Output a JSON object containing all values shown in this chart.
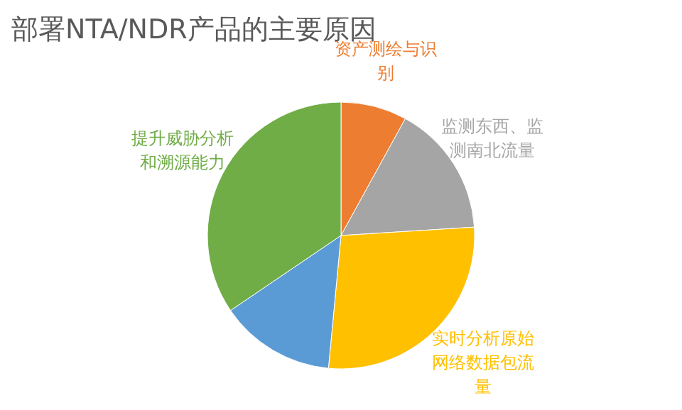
{
  "chart_data": {
    "type": "pie",
    "title": "部署NTA/NDR产品的主要原因",
    "categories": [
      "资产测绘与识别",
      "监测东西、监测南北流量",
      "实时分析原始网络数据包流量",
      null,
      "提升威胁分析和溯源能力"
    ],
    "values": [
      8,
      16,
      27.5,
      14,
      34.5
    ],
    "colors": [
      "#ed7d31",
      "#a5a5a5",
      "#ffc000",
      "#5b9bd5",
      "#70ad47"
    ]
  }
}
